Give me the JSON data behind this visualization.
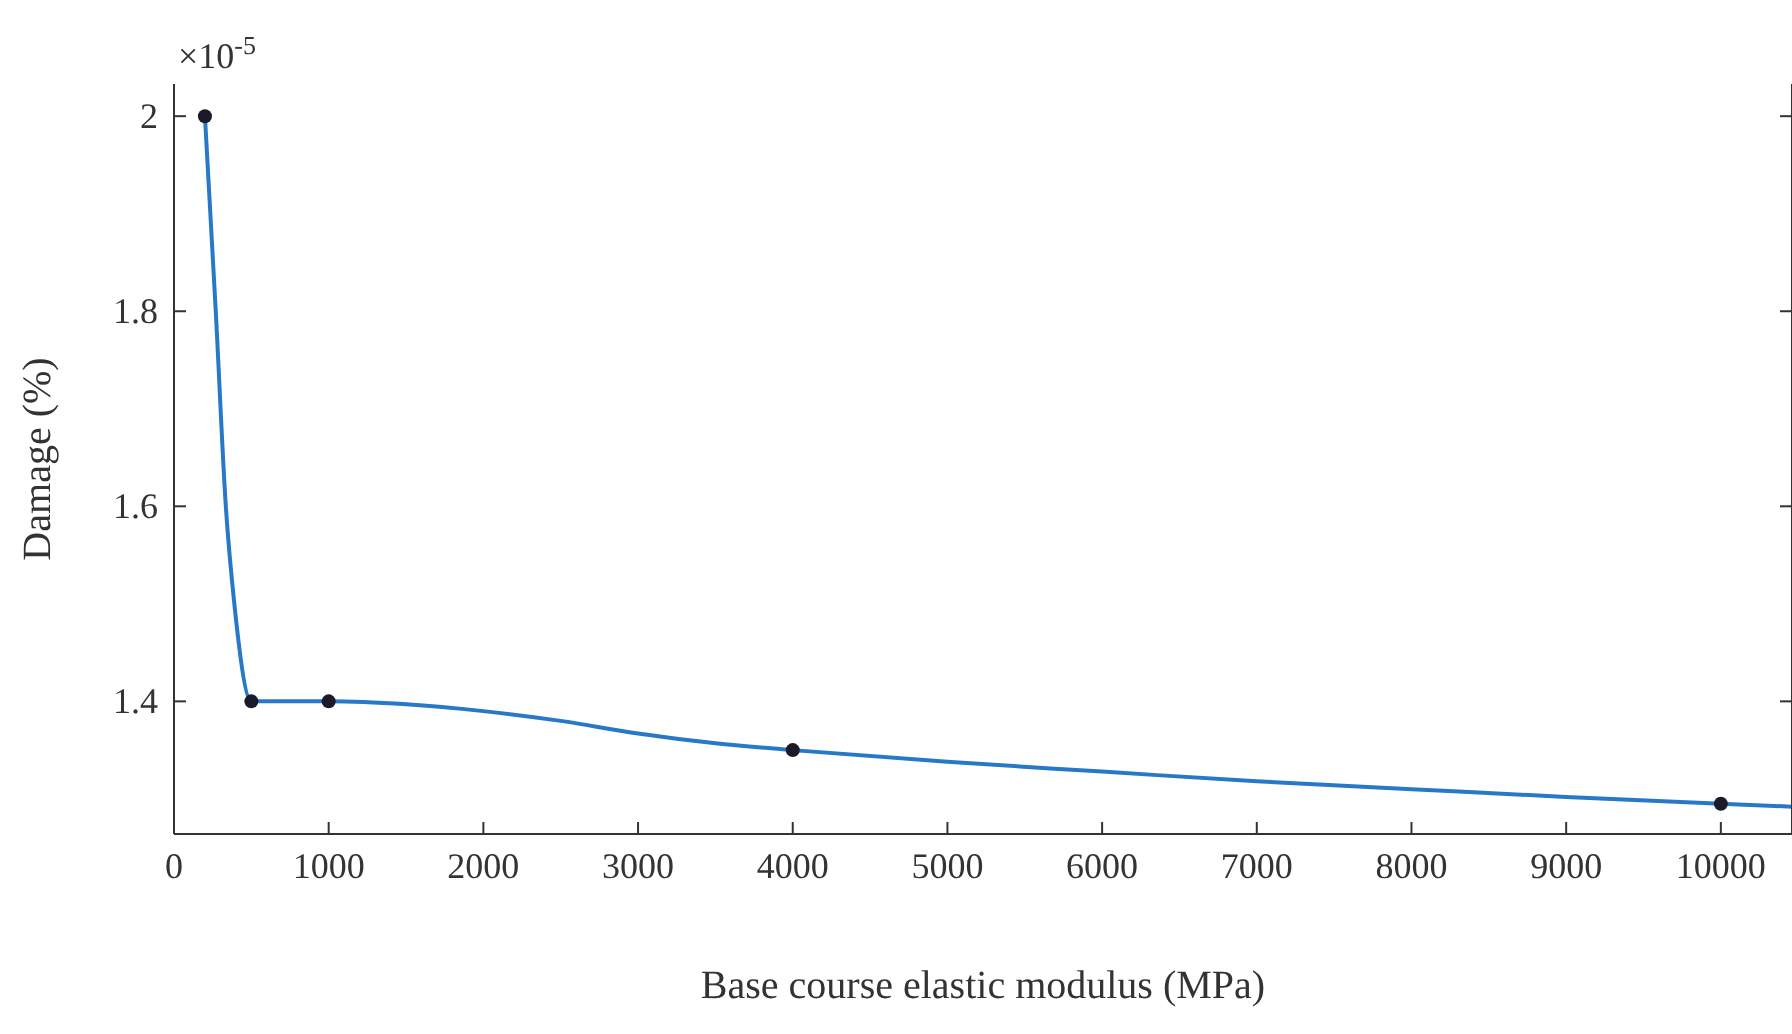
{
  "chart_data": {
    "type": "line",
    "xlabel": "Base course elastic modulus (MPa)",
    "ylabel": "Damage (%)",
    "annotations": [
      "×10$^{-5}$"
    ],
    "xlim": [
      0,
      10460
    ],
    "ylim": [
      1.264,
      2.033
    ],
    "xticks": [
      0,
      1000,
      2000,
      3000,
      4000,
      5000,
      6000,
      7000,
      8000,
      9000,
      10000
    ],
    "yticks": [
      1.4,
      1.6,
      1.8,
      2
    ],
    "grid": false,
    "series": [
      {
        "type": "line",
        "color": "#2878c8",
        "marker": "none",
        "x": [
          200,
          270,
          335,
          390,
          500,
          1000,
          1500,
          2000,
          2500,
          3000,
          3500,
          4000,
          5000,
          6000,
          7000,
          8000,
          9000,
          10000,
          10460
        ],
        "values": [
          2.0,
          1.8,
          1.6,
          1.5,
          1.4,
          1.4,
          1.397,
          1.39,
          1.38,
          1.367,
          1.357,
          1.35,
          1.338,
          1.328,
          1.318,
          1.31,
          1.302,
          1.295,
          1.292
        ]
      },
      {
        "type": "scatter",
        "color": "#1a1a2a",
        "marker": "circle",
        "x": [
          200,
          500,
          1000,
          4000,
          10000
        ],
        "values": [
          2.0,
          1.4,
          1.4,
          1.35,
          1.295
        ]
      }
    ]
  }
}
